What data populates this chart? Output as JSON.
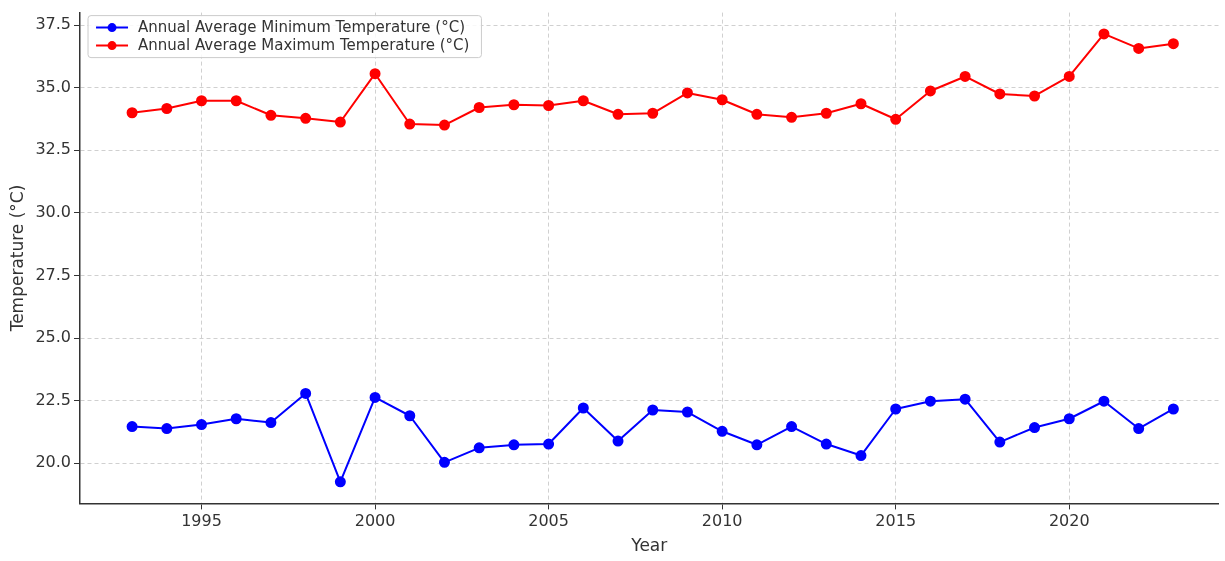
{
  "chart_data": {
    "type": "line",
    "xlabel": "Year",
    "ylabel": "Temperature (°C)",
    "x": [
      1993,
      1994,
      1995,
      1996,
      1997,
      1998,
      1999,
      2000,
      2001,
      2002,
      2003,
      2004,
      2005,
      2006,
      2007,
      2008,
      2009,
      2010,
      2011,
      2012,
      2013,
      2014,
      2015,
      2016,
      2017,
      2018,
      2019,
      2020,
      2021,
      2022,
      2023
    ],
    "series": [
      {
        "name": "Annual Average Minimum Temperature (°C)",
        "color": "#0000ff",
        "values": [
          21.47,
          21.39,
          21.55,
          21.78,
          21.63,
          22.79,
          19.26,
          22.63,
          21.9,
          20.04,
          20.62,
          20.74,
          20.77,
          22.21,
          20.89,
          22.13,
          22.05,
          21.28,
          20.74,
          21.47,
          20.77,
          20.31,
          22.17,
          22.48,
          22.56,
          20.85,
          21.43,
          21.78,
          22.48,
          21.39,
          22.17
        ]
      },
      {
        "name": "Annual Average Maximum Temperature (°C)",
        "color": "#ff0000",
        "values": [
          34.0,
          34.17,
          34.48,
          34.48,
          33.9,
          33.78,
          33.63,
          35.56,
          33.55,
          33.51,
          34.21,
          34.32,
          34.29,
          34.48,
          33.94,
          33.98,
          34.79,
          34.52,
          33.94,
          33.82,
          33.98,
          34.36,
          33.74,
          34.87,
          35.45,
          34.75,
          34.67,
          35.45,
          37.15,
          36.57,
          36.76
        ]
      }
    ],
    "xlim": [
      1991.5,
      2024.3
    ],
    "xticks": [
      1995,
      2000,
      2005,
      2010,
      2015,
      2020
    ],
    "ylim": [
      18.4,
      38.0
    ],
    "yticks": [
      {
        "value": 20,
        "label": "20.0"
      },
      22.5,
      {
        "value": 25,
        "label": "25.0"
      },
      27.5,
      {
        "value": 30,
        "label": "30.0"
      },
      32.5,
      {
        "value": 35,
        "label": "35.0"
      },
      37.5
    ],
    "grid": true,
    "legend": "top left",
    "marker": "circle",
    "line_style": "solid"
  }
}
